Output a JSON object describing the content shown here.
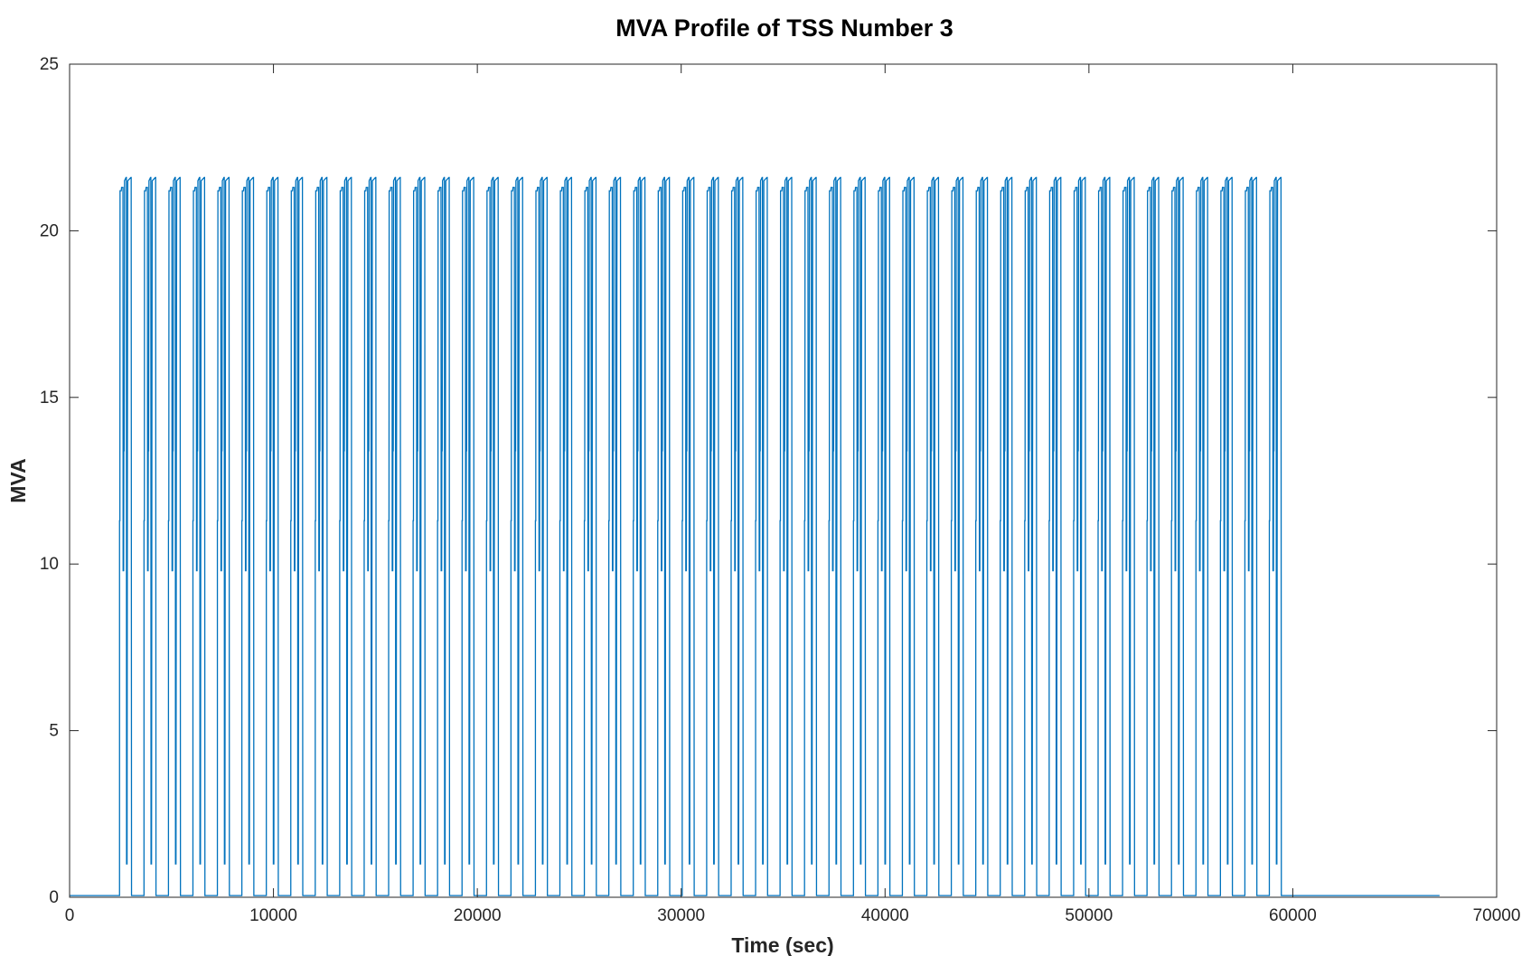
{
  "chart_data": {
    "type": "line",
    "title": "MVA Profile of TSS Number 3",
    "xlabel": "Time (sec)",
    "ylabel": "MVA",
    "xlim": [
      0,
      70000
    ],
    "ylim": [
      0,
      25
    ],
    "xticks": [
      0,
      10000,
      20000,
      30000,
      40000,
      50000,
      60000,
      70000
    ],
    "yticks": [
      0,
      5,
      10,
      15,
      20,
      25
    ],
    "grid": false,
    "line_color": "#0072BD",
    "series": [
      {
        "pattern": "periodic_pulses",
        "baseline": 0.05,
        "first_pulse_start": 2450,
        "pulse_period": 1200,
        "pulse_count": 48,
        "pulse_width": 400,
        "pulse_levels": [
          11.3,
          21.2,
          21.3,
          9.8,
          13.4,
          21.5,
          21.6,
          1.0
        ],
        "end_time": 67200
      }
    ]
  }
}
